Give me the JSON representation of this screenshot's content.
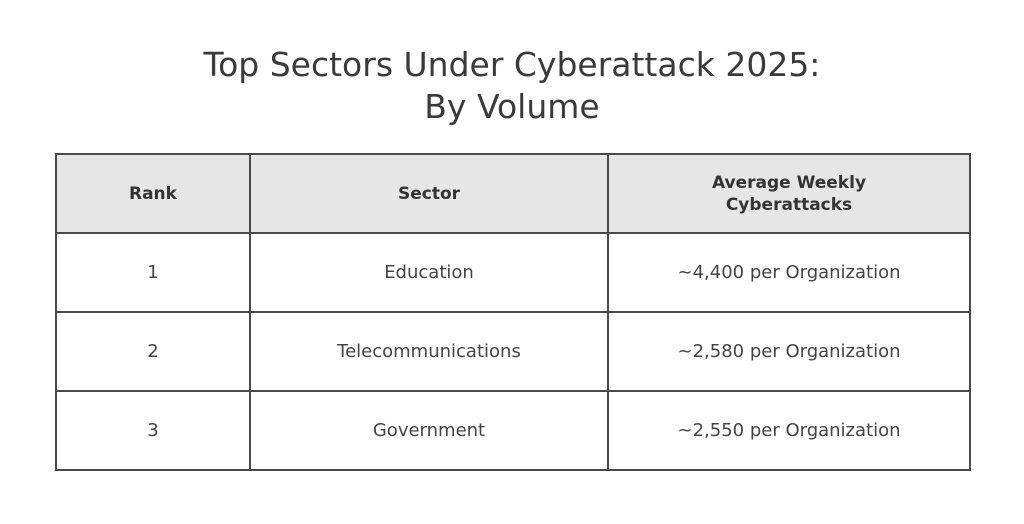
{
  "title_line1": "Top Sectors Under Cyberattack 2025:",
  "title_line2": "By Volume",
  "chart_data": {
    "type": "table",
    "columns": [
      "Rank",
      "Sector",
      "Average Weekly Cyberattacks"
    ],
    "rows": [
      {
        "rank": "1",
        "sector": "Education",
        "value": "~4,400 per Organization"
      },
      {
        "rank": "2",
        "sector": "Telecommunications",
        "value": "~2,580 per Organization"
      },
      {
        "rank": "3",
        "sector": "Government",
        "value": "~2,550 per Organization"
      }
    ]
  },
  "colors": {
    "header_bg": "#e6e6e6",
    "border": "#4a4a4a",
    "text": "#3f3f3f"
  }
}
